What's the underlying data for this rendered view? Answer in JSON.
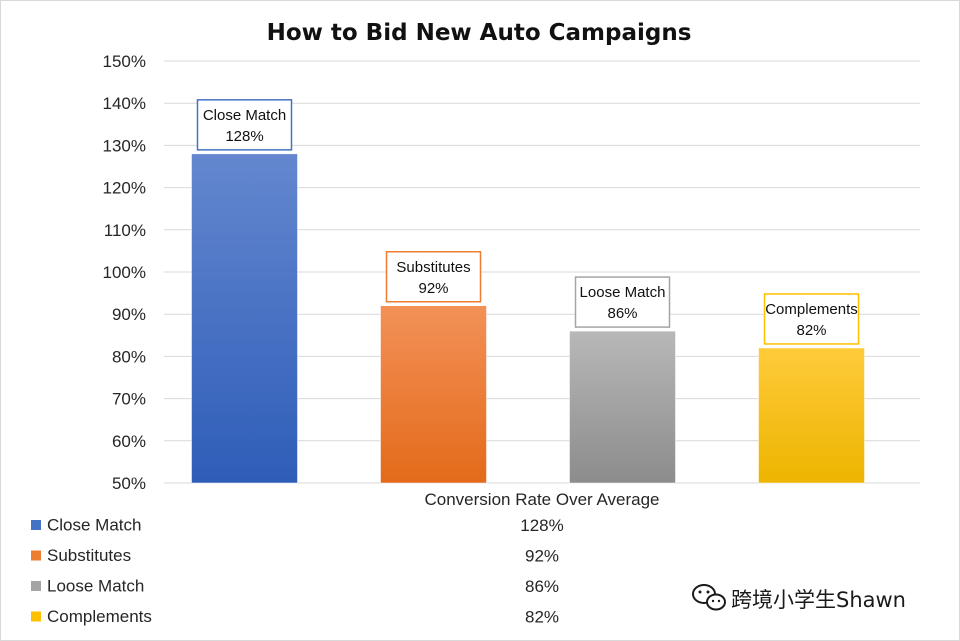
{
  "chart_data": {
    "type": "bar",
    "title": "How to Bid New Auto Campaigns",
    "xlabel": "Conversion Rate Over Average",
    "ylabel": "",
    "ylim": [
      0.5,
      1.5
    ],
    "yticks": [
      "50%",
      "60%",
      "70%",
      "80%",
      "90%",
      "100%",
      "110%",
      "120%",
      "130%",
      "140%",
      "150%"
    ],
    "grid": true,
    "legend": "bottom-table",
    "categories": [
      "Close Match",
      "Substitutes",
      "Loose Match",
      "Complements"
    ],
    "values": [
      1.28,
      0.92,
      0.86,
      0.82
    ],
    "data_labels": [
      "128%",
      "92%",
      "86%",
      "82%"
    ],
    "colors": [
      "#4472C4",
      "#ED7D31",
      "#A5A5A5",
      "#FFC000"
    ]
  },
  "watermark": {
    "icon": "wechat-icon",
    "text": "跨境小学生Shawn"
  }
}
